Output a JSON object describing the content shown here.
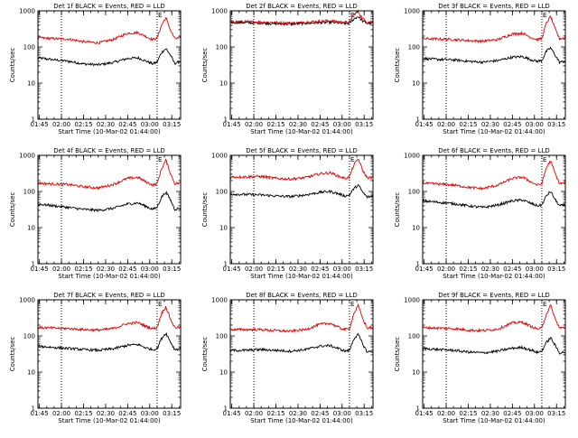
{
  "chart_data": [
    {
      "type": "line",
      "title": "Det 1f BLACK = Events, RED = LLD",
      "xlabel": "Start Time (10-Mar-02 01:44:00)",
      "ylabel": "Counts/sec",
      "yscale": "log",
      "ylim": [
        1,
        1000
      ],
      "yticks": [
        "1",
        "10",
        "100",
        "1000"
      ],
      "xticks": [
        "01:45",
        "02:00",
        "02:15",
        "02:30",
        "02:45",
        "03:00",
        "03:15"
      ],
      "xrange": [
        "01:44",
        "03:21"
      ],
      "markers": [
        {
          "time": "02:00",
          "label": ""
        },
        {
          "time": "03:05",
          "label": "E"
        }
      ],
      "series": [
        {
          "color": "#000000",
          "x": [
            "01:44",
            "01:55",
            "02:05",
            "02:15",
            "02:25",
            "02:35",
            "02:45",
            "02:52",
            "02:58",
            "03:02",
            "03:05",
            "03:08",
            "03:11",
            "03:14",
            "03:17",
            "03:21"
          ],
          "y": [
            50,
            44,
            40,
            34,
            32,
            37,
            48,
            50,
            40,
            34,
            38,
            70,
            90,
            60,
            35,
            40
          ]
        },
        {
          "color": "#e00000",
          "x": [
            "01:44",
            "01:55",
            "02:05",
            "02:15",
            "02:25",
            "02:35",
            "02:45",
            "02:52",
            "02:58",
            "03:02",
            "03:05",
            "03:08",
            "03:11",
            "03:14",
            "03:17",
            "03:21"
          ],
          "y": [
            180,
            170,
            165,
            140,
            130,
            160,
            240,
            250,
            190,
            160,
            175,
            400,
            650,
            300,
            170,
            175
          ]
        }
      ]
    },
    {
      "type": "line",
      "title": "Det 2f BLACK = Events, RED = LLD",
      "xlabel": "Start Time (10-Mar-02 01:44:00)",
      "ylabel": "Counts/sec",
      "yscale": "log",
      "ylim": [
        1,
        1000
      ],
      "yticks": [
        "1",
        "10",
        "100",
        "1000"
      ],
      "xticks": [
        "01:45",
        "02:00",
        "02:15",
        "02:30",
        "02:45",
        "03:00",
        "03:15"
      ],
      "xrange": [
        "01:44",
        "03:21"
      ],
      "markers": [
        {
          "time": "02:00",
          "label": ""
        },
        {
          "time": "03:05",
          "label": "E"
        }
      ],
      "series": [
        {
          "color": "#000000",
          "x": [
            "01:44",
            "01:55",
            "02:05",
            "02:15",
            "02:25",
            "02:35",
            "02:45",
            "02:52",
            "02:58",
            "03:02",
            "03:05",
            "03:08",
            "03:11",
            "03:14",
            "03:17",
            "03:21"
          ],
          "y": [
            480,
            470,
            460,
            440,
            430,
            450,
            470,
            480,
            460,
            440,
            450,
            600,
            700,
            520,
            450,
            460
          ]
        },
        {
          "color": "#e00000",
          "x": [
            "01:44",
            "01:55",
            "02:05",
            "02:15",
            "02:25",
            "02:35",
            "02:45",
            "02:52",
            "02:58",
            "03:02",
            "03:05",
            "03:08",
            "03:11",
            "03:14",
            "03:17",
            "03:21"
          ],
          "y": [
            500,
            500,
            490,
            470,
            460,
            480,
            520,
            530,
            500,
            480,
            490,
            800,
            950,
            600,
            500,
            500
          ]
        }
      ]
    },
    {
      "type": "line",
      "title": "Det 3f BLACK = Events, RED = LLD",
      "xlabel": "Start Time (10-Mar-02 01:44:00)",
      "ylabel": "Counts/sec",
      "yscale": "log",
      "ylim": [
        1,
        1000
      ],
      "yticks": [
        "1",
        "10",
        "100",
        "1000"
      ],
      "xticks": [
        "01:45",
        "02:00",
        "02:15",
        "02:30",
        "02:45",
        "03:00",
        "03:15"
      ],
      "xrange": [
        "01:44",
        "03:21"
      ],
      "markers": [
        {
          "time": "02:00",
          "label": ""
        },
        {
          "time": "03:05",
          "label": "E"
        }
      ],
      "series": [
        {
          "color": "#000000",
          "x": [
            "01:44",
            "01:55",
            "02:05",
            "02:15",
            "02:25",
            "02:35",
            "02:45",
            "02:52",
            "02:58",
            "03:02",
            "03:05",
            "03:08",
            "03:11",
            "03:14",
            "03:17",
            "03:21"
          ],
          "y": [
            48,
            45,
            44,
            40,
            38,
            42,
            52,
            54,
            44,
            40,
            42,
            75,
            95,
            60,
            38,
            40
          ]
        },
        {
          "color": "#e00000",
          "x": [
            "01:44",
            "01:55",
            "02:05",
            "02:15",
            "02:25",
            "02:35",
            "02:45",
            "02:52",
            "02:58",
            "03:02",
            "03:05",
            "03:08",
            "03:11",
            "03:14",
            "03:17",
            "03:21"
          ],
          "y": [
            170,
            165,
            160,
            150,
            145,
            160,
            230,
            240,
            180,
            160,
            170,
            450,
            700,
            320,
            170,
            175
          ]
        }
      ]
    },
    {
      "type": "line",
      "title": "Det 4f BLACK = Events, RED = LLD",
      "xlabel": "Start Time (10-Mar-02 01:44:00)",
      "ylabel": "Counts/sec",
      "yscale": "log",
      "ylim": [
        1,
        1000
      ],
      "yticks": [
        "1",
        "10",
        "100",
        "1000"
      ],
      "xticks": [
        "01:45",
        "02:00",
        "02:15",
        "02:30",
        "02:45",
        "03:00",
        "03:15"
      ],
      "xrange": [
        "01:44",
        "03:21"
      ],
      "markers": [
        {
          "time": "02:00",
          "label": ""
        },
        {
          "time": "03:05",
          "label": "E"
        }
      ],
      "series": [
        {
          "color": "#000000",
          "x": [
            "01:44",
            "01:55",
            "02:05",
            "02:15",
            "02:25",
            "02:35",
            "02:45",
            "02:52",
            "02:58",
            "03:02",
            "03:05",
            "03:08",
            "03:11",
            "03:14",
            "03:17",
            "03:21"
          ],
          "y": [
            45,
            40,
            36,
            32,
            30,
            34,
            45,
            48,
            38,
            32,
            36,
            70,
            95,
            60,
            32,
            35
          ]
        },
        {
          "color": "#e00000",
          "x": [
            "01:44",
            "01:55",
            "02:05",
            "02:15",
            "02:25",
            "02:35",
            "02:45",
            "02:52",
            "02:58",
            "03:02",
            "03:05",
            "03:08",
            "03:11",
            "03:14",
            "03:17",
            "03:21"
          ],
          "y": [
            170,
            160,
            155,
            135,
            125,
            155,
            230,
            245,
            180,
            150,
            165,
            420,
            750,
            320,
            165,
            170
          ]
        }
      ]
    },
    {
      "type": "line",
      "title": "Det 5f BLACK = Events, RED = LLD",
      "xlabel": "Start Time (10-Mar-02 01:44:00)",
      "ylabel": "Counts/sec",
      "yscale": "log",
      "ylim": [
        1,
        1000
      ],
      "yticks": [
        "1",
        "10",
        "100",
        "1000"
      ],
      "xticks": [
        "01:45",
        "02:00",
        "02:15",
        "02:30",
        "02:45",
        "03:00",
        "03:15"
      ],
      "xrange": [
        "01:44",
        "03:21"
      ],
      "markers": [
        {
          "time": "02:00",
          "label": ""
        },
        {
          "time": "03:05",
          "label": "E"
        }
      ],
      "series": [
        {
          "color": "#000000",
          "x": [
            "01:44",
            "01:55",
            "02:05",
            "02:15",
            "02:25",
            "02:35",
            "02:45",
            "02:52",
            "02:58",
            "03:02",
            "03:05",
            "03:08",
            "03:11",
            "03:14",
            "03:17",
            "03:21"
          ],
          "y": [
            85,
            82,
            80,
            75,
            72,
            80,
            95,
            100,
            85,
            75,
            80,
            120,
            150,
            95,
            70,
            75
          ]
        },
        {
          "color": "#e00000",
          "x": [
            "01:44",
            "01:55",
            "02:05",
            "02:15",
            "02:25",
            "02:35",
            "02:45",
            "02:52",
            "02:58",
            "03:02",
            "03:05",
            "03:08",
            "03:11",
            "03:14",
            "03:17",
            "03:21"
          ],
          "y": [
            250,
            255,
            260,
            230,
            220,
            240,
            310,
            330,
            260,
            230,
            250,
            550,
            800,
            380,
            240,
            245
          ]
        }
      ]
    },
    {
      "type": "line",
      "title": "Det 6f BLACK = Events, RED = LLD",
      "xlabel": "Start Time (10-Mar-02 01:44:00)",
      "ylabel": "Counts/sec",
      "yscale": "log",
      "ylim": [
        1,
        1000
      ],
      "yticks": [
        "1",
        "10",
        "100",
        "1000"
      ],
      "xticks": [
        "01:45",
        "02:00",
        "02:15",
        "02:30",
        "02:45",
        "03:00",
        "03:15"
      ],
      "xrange": [
        "01:44",
        "03:21"
      ],
      "markers": [
        {
          "time": "02:00",
          "label": ""
        },
        {
          "time": "03:05",
          "label": "E"
        }
      ],
      "series": [
        {
          "color": "#000000",
          "x": [
            "01:44",
            "01:55",
            "02:05",
            "02:15",
            "02:25",
            "02:35",
            "02:45",
            "02:52",
            "02:58",
            "03:02",
            "03:05",
            "03:08",
            "03:11",
            "03:14",
            "03:17",
            "03:21"
          ],
          "y": [
            55,
            50,
            46,
            40,
            36,
            42,
            55,
            58,
            46,
            40,
            42,
            75,
            100,
            60,
            40,
            42
          ]
        },
        {
          "color": "#e00000",
          "x": [
            "01:44",
            "01:55",
            "02:05",
            "02:15",
            "02:25",
            "02:35",
            "02:45",
            "02:52",
            "02:58",
            "03:02",
            "03:05",
            "03:08",
            "03:11",
            "03:14",
            "03:17",
            "03:21"
          ],
          "y": [
            170,
            160,
            150,
            130,
            120,
            150,
            230,
            250,
            180,
            150,
            165,
            450,
            700,
            320,
            165,
            170
          ]
        }
      ]
    },
    {
      "type": "line",
      "title": "Det 7f BLACK = Events, RED = LLD",
      "xlabel": "Start Time (10-Mar-02 01:44:00)",
      "ylabel": "Counts/sec",
      "yscale": "log",
      "ylim": [
        1,
        1000
      ],
      "yticks": [
        "1",
        "10",
        "100",
        "1000"
      ],
      "xticks": [
        "01:45",
        "02:00",
        "02:15",
        "02:30",
        "02:45",
        "03:00",
        "03:15"
      ],
      "xrange": [
        "01:44",
        "03:21"
      ],
      "markers": [
        {
          "time": "02:00",
          "label": ""
        },
        {
          "time": "03:05",
          "label": "E"
        }
      ],
      "series": [
        {
          "color": "#000000",
          "x": [
            "01:44",
            "01:55",
            "02:05",
            "02:15",
            "02:25",
            "02:35",
            "02:45",
            "02:52",
            "02:58",
            "03:02",
            "03:05",
            "03:08",
            "03:11",
            "03:14",
            "03:17",
            "03:21"
          ],
          "y": [
            52,
            48,
            45,
            42,
            40,
            44,
            55,
            58,
            46,
            42,
            44,
            85,
            120,
            70,
            42,
            45
          ]
        },
        {
          "color": "#e00000",
          "x": [
            "01:44",
            "01:55",
            "02:05",
            "02:15",
            "02:25",
            "02:35",
            "02:45",
            "02:52",
            "02:58",
            "03:02",
            "03:05",
            "03:08",
            "03:11",
            "03:14",
            "03:17",
            "03:21"
          ],
          "y": [
            170,
            165,
            160,
            150,
            145,
            160,
            220,
            235,
            180,
            160,
            170,
            420,
            650,
            300,
            170,
            175
          ]
        }
      ]
    },
    {
      "type": "line",
      "title": "Det 8f BLACK = Events, RED = LLD",
      "xlabel": "Start Time (10-Mar-02 01:44:00)",
      "ylabel": "Counts/sec",
      "yscale": "log",
      "ylim": [
        1,
        1000
      ],
      "yticks": [
        "1",
        "10",
        "100",
        "1000"
      ],
      "xticks": [
        "01:45",
        "02:00",
        "02:15",
        "02:30",
        "02:45",
        "03:00",
        "03:15"
      ],
      "xrange": [
        "01:44",
        "03:21"
      ],
      "markers": [
        {
          "time": "02:00",
          "label": ""
        },
        {
          "time": "03:05",
          "label": "E"
        }
      ],
      "series": [
        {
          "color": "#000000",
          "x": [
            "01:44",
            "01:55",
            "02:05",
            "02:15",
            "02:25",
            "02:35",
            "02:45",
            "02:52",
            "02:58",
            "03:02",
            "03:05",
            "03:08",
            "03:11",
            "03:14",
            "03:17",
            "03:21"
          ],
          "y": [
            40,
            40,
            42,
            40,
            38,
            42,
            52,
            54,
            44,
            38,
            40,
            85,
            110,
            60,
            36,
            38
          ]
        },
        {
          "color": "#e00000",
          "x": [
            "01:44",
            "01:55",
            "02:05",
            "02:15",
            "02:25",
            "02:35",
            "02:45",
            "02:52",
            "02:58",
            "03:02",
            "03:05",
            "03:08",
            "03:11",
            "03:14",
            "03:17",
            "03:21"
          ],
          "y": [
            150,
            150,
            150,
            140,
            135,
            150,
            210,
            225,
            170,
            150,
            160,
            420,
            700,
            300,
            165,
            170
          ]
        }
      ]
    },
    {
      "type": "line",
      "title": "Det 9f BLACK = Events, RED = LLD",
      "xlabel": "Start Time (10-Mar-02 01:44:00)",
      "ylabel": "Counts/sec",
      "yscale": "log",
      "ylim": [
        1,
        1000
      ],
      "yticks": [
        "1",
        "10",
        "100",
        "1000"
      ],
      "xticks": [
        "01:45",
        "02:00",
        "02:15",
        "02:30",
        "02:45",
        "03:00",
        "03:15"
      ],
      "xrange": [
        "01:44",
        "03:21"
      ],
      "markers": [
        {
          "time": "02:00",
          "label": ""
        },
        {
          "time": "03:05",
          "label": "E"
        }
      ],
      "series": [
        {
          "color": "#000000",
          "x": [
            "01:44",
            "01:55",
            "02:05",
            "02:15",
            "02:25",
            "02:35",
            "02:45",
            "02:52",
            "02:58",
            "03:02",
            "03:05",
            "03:08",
            "03:11",
            "03:14",
            "03:17",
            "03:21"
          ],
          "y": [
            45,
            42,
            40,
            36,
            34,
            38,
            46,
            48,
            40,
            35,
            38,
            65,
            90,
            55,
            34,
            36
          ]
        },
        {
          "color": "#e00000",
          "x": [
            "01:44",
            "01:55",
            "02:05",
            "02:15",
            "02:25",
            "02:35",
            "02:45",
            "02:52",
            "02:58",
            "03:02",
            "03:05",
            "03:08",
            "03:11",
            "03:14",
            "03:17",
            "03:21"
          ],
          "y": [
            170,
            165,
            160,
            145,
            140,
            155,
            230,
            240,
            180,
            155,
            165,
            400,
            700,
            300,
            165,
            170
          ]
        }
      ]
    }
  ]
}
